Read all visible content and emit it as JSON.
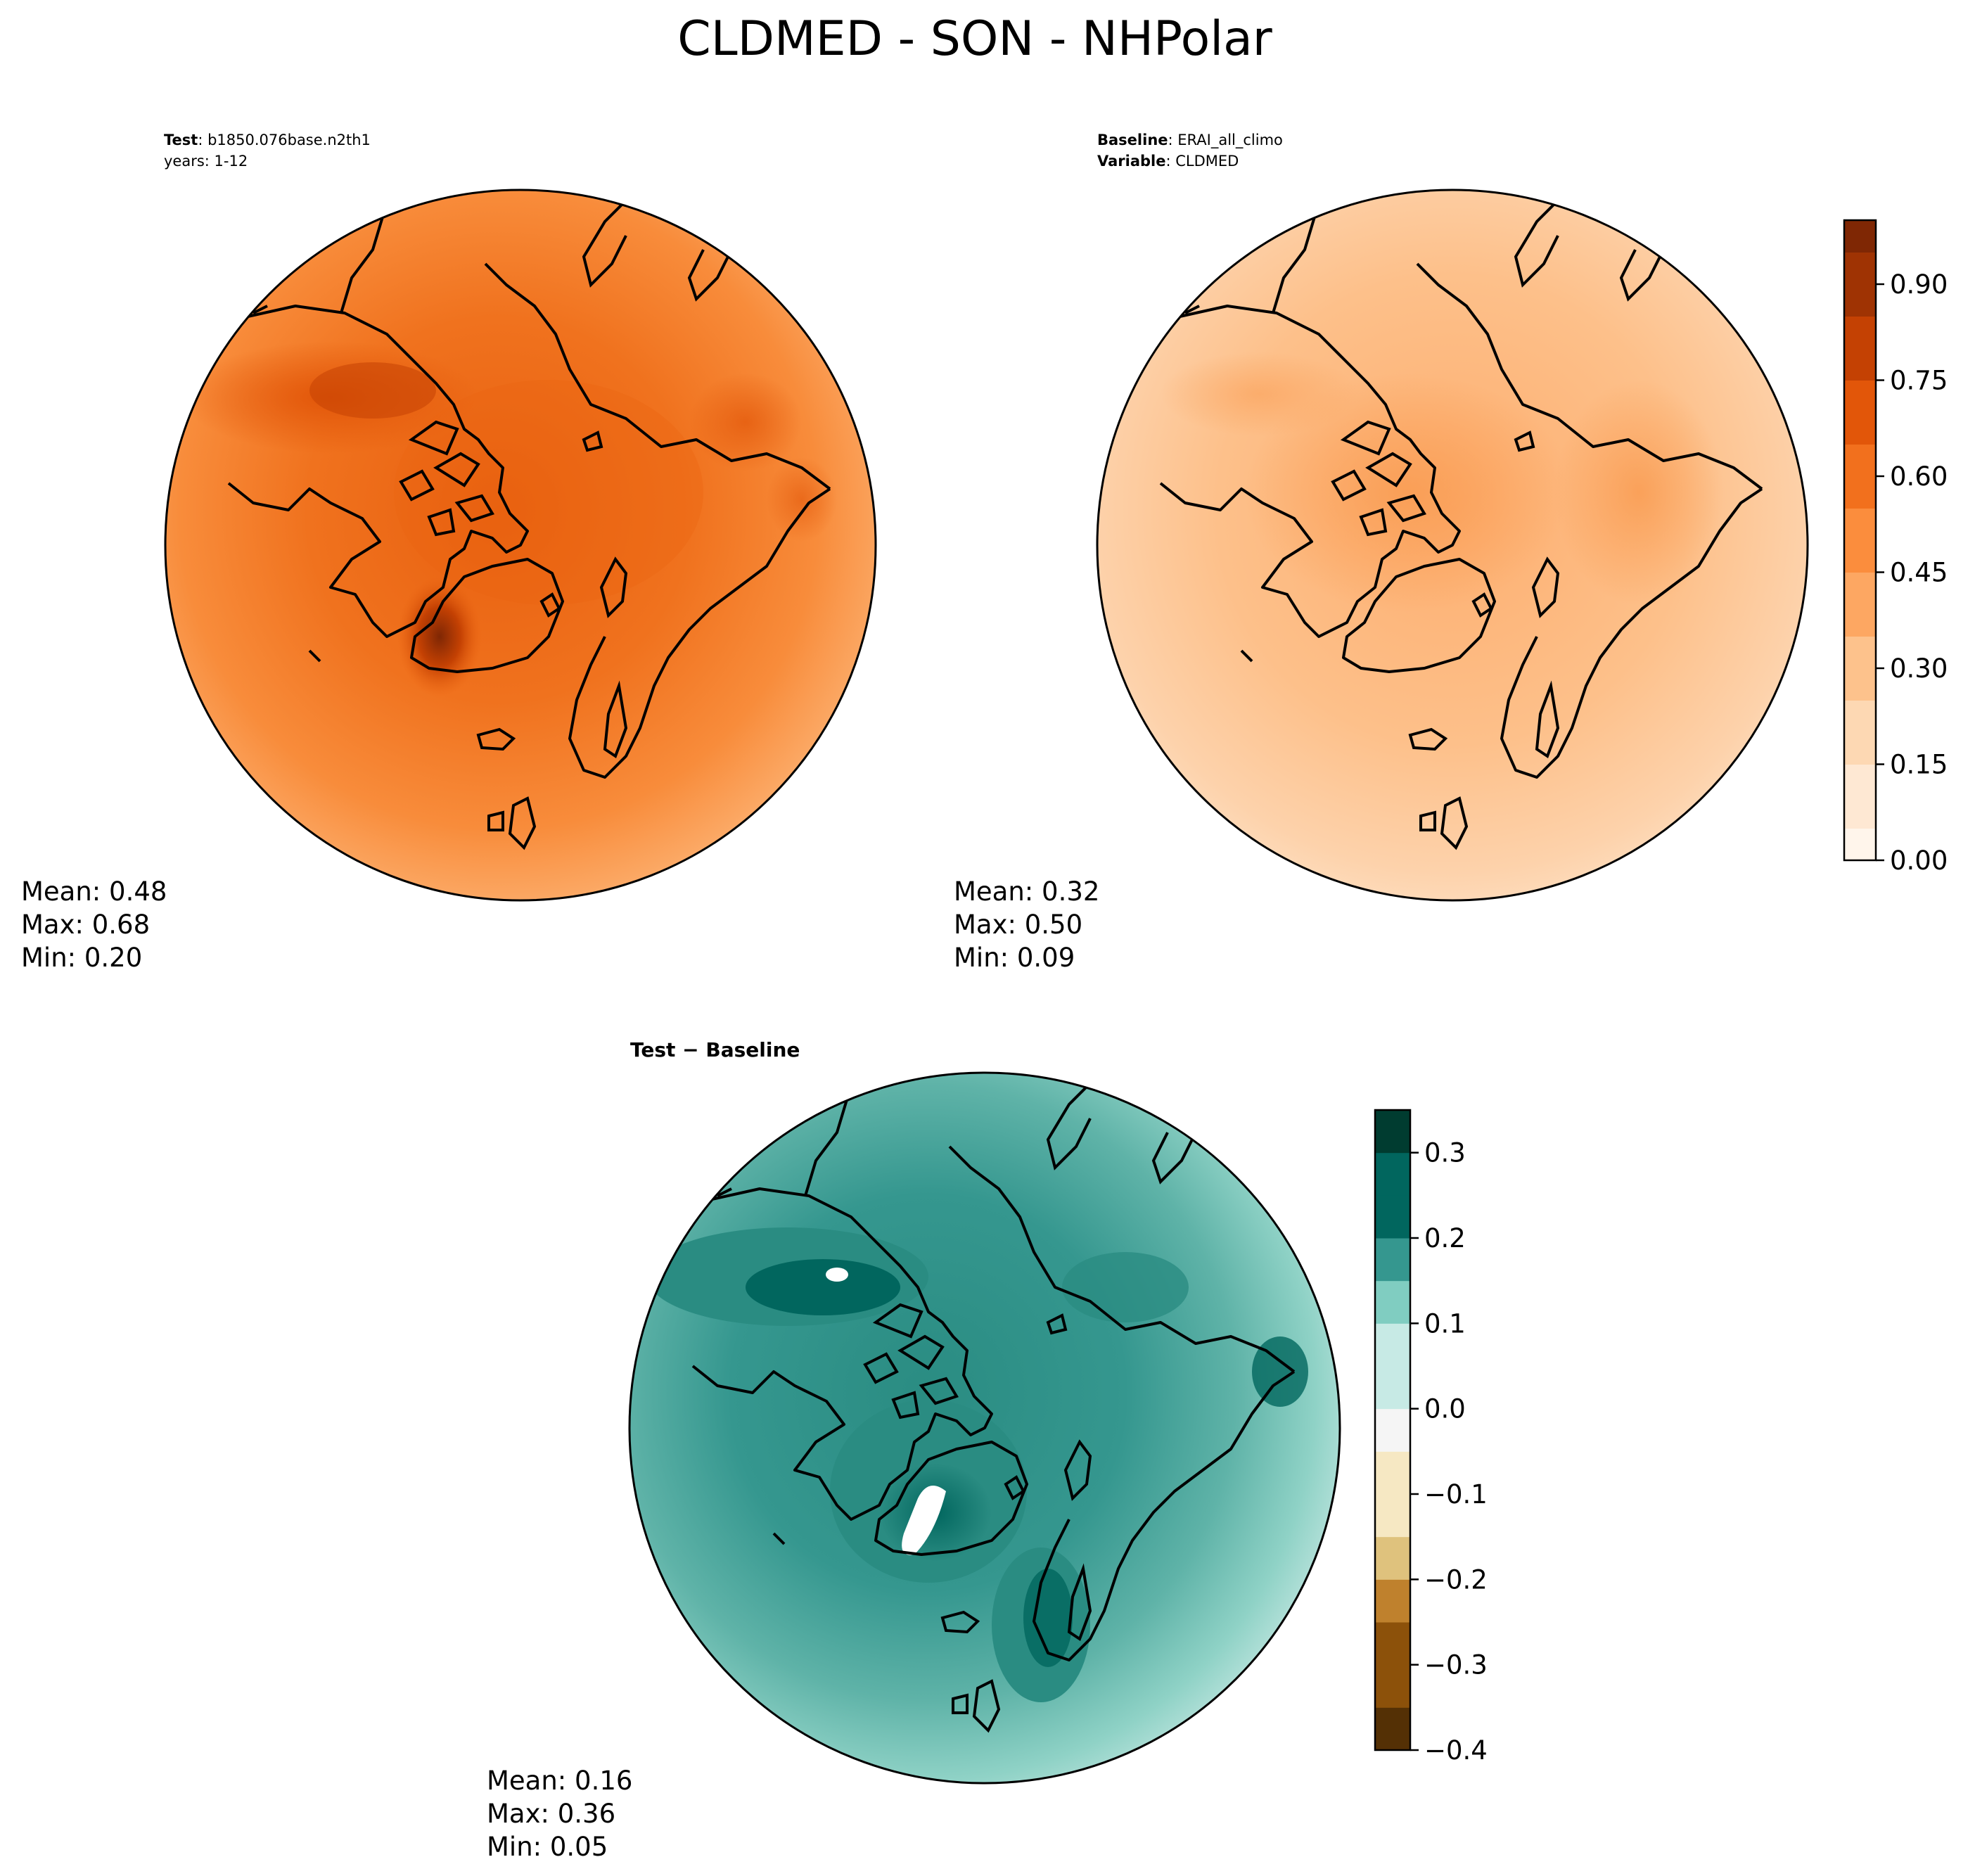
{
  "figure": {
    "title": "CLDMED - SON - NHPolar"
  },
  "colors": {
    "orange_scale": [
      "#fff5eb",
      "#fee8d3",
      "#fdd8b3",
      "#fdc28c",
      "#fda762",
      "#fb8d3d",
      "#f2701d",
      "#e25609",
      "#c44103",
      "#9f3303",
      "#7f2704"
    ],
    "diff_scale": [
      "#543005",
      "#8c510a",
      "#bf812d",
      "#dfc27d",
      "#f6e8c3",
      "#f5f5f5",
      "#c7eae5",
      "#80cdc1",
      "#35978f",
      "#01665e",
      "#003c30"
    ],
    "land_outline": "#000000",
    "missing": "#ffffff"
  },
  "panels": {
    "test": {
      "label_bold": "Test",
      "label_text": ": b1850.076base.n2th1",
      "label_line2": "years: 1-12",
      "stats": {
        "mean": "Mean:  0.48",
        "max": "Max:  0.68",
        "min": "Min:  0.20"
      },
      "field_mean": 0.48
    },
    "baseline": {
      "label_bold": "Baseline",
      "label_text": ": ERAI_all_climo",
      "label_bold2": "Variable",
      "label_text2": ": CLDMED",
      "stats": {
        "mean": "Mean:  0.32",
        "max": "Max:  0.50",
        "min": "Min:  0.09"
      },
      "field_mean": 0.32
    },
    "difference": {
      "label": "Test − Baseline",
      "stats": {
        "mean": "Mean:  0.16",
        "max": "Max:  0.36",
        "min": "Min:  0.05"
      },
      "field_mean": 0.16
    }
  },
  "colorbars": {
    "main": {
      "ticks": [
        "0.00",
        "0.15",
        "0.30",
        "0.45",
        "0.60",
        "0.75",
        "0.90"
      ],
      "range": [
        0,
        1.0
      ]
    },
    "diff": {
      "ticks": [
        "−0.4",
        "−0.3",
        "−0.2",
        "−0.1",
        "0.0",
        "0.1",
        "0.2",
        "0.3"
      ],
      "range": [
        -0.4,
        0.35
      ]
    }
  }
}
